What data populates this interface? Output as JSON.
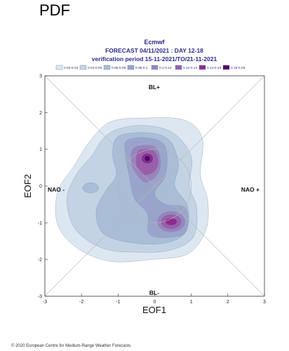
{
  "header": {
    "pdf_label": "PDF"
  },
  "footer": {
    "copyright": "© 2020 European Centre for Medium-Range Weather Forecasts"
  },
  "chart_data": {
    "type": "heatmap",
    "subtype": "filled-contour density",
    "title": "Ecmwf",
    "subtitle_line1": "FORECAST 04/11/2021 : DAY 12-18",
    "subtitle_line2": "verification period 15-11-2021/TO/21-11-2021",
    "xlabel": "EOF1",
    "ylabel": "EOF2",
    "xlim": [
      -3,
      3
    ],
    "ylim": [
      -3,
      3
    ],
    "x_ticks": [
      -3,
      -2,
      -1,
      0,
      1,
      2,
      3
    ],
    "y_ticks": [
      -3,
      -2,
      -1,
      0,
      1,
      2,
      3
    ],
    "regime_labels": {
      "top": "BL+",
      "bottom": "BL-",
      "left": "NAO -",
      "right": "NAO +"
    },
    "legend": [
      {
        "label": "0.02-0.04",
        "color": "#dde7f1"
      },
      {
        "label": "0.04-0.06",
        "color": "#c3d3e4"
      },
      {
        "label": "0.06-0.08",
        "color": "#a9bdd6"
      },
      {
        "label": "0.08-0.1",
        "color": "#9aa4cb"
      },
      {
        "label": "0.1-0.12",
        "color": "#9a84be"
      },
      {
        "label": "0.12-0.14",
        "color": "#9a5fab"
      },
      {
        "label": "0.14-0.16",
        "color": "#8a2a8e"
      },
      {
        "label": "0.16-0.25",
        "color": "#5a0068"
      }
    ],
    "density_peaks": [
      {
        "x": -0.2,
        "y": 0.75,
        "level": "0.16-0.25"
      },
      {
        "x": 0.45,
        "y": -0.95,
        "level": "0.14-0.16"
      }
    ],
    "reference_circle_radius": 1,
    "grid": false
  }
}
